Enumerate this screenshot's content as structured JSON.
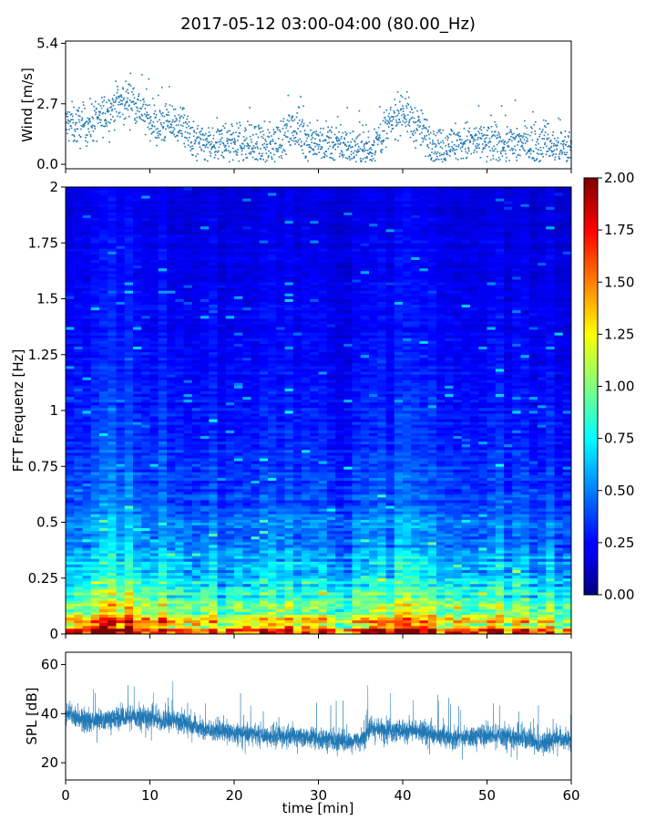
{
  "title": "2017-05-12 03:00-04:00 (80.00_Hz)",
  "chart_data": [
    {
      "type": "scatter",
      "name": "wind",
      "ylabel": "Wind [m/s]",
      "xlim": [
        0,
        60
      ],
      "ylim": [
        -0.2,
        5.5
      ],
      "yticks": [
        0.0,
        2.7,
        5.4
      ],
      "ytick_labels": [
        "0.0",
        "2.7",
        "5.4"
      ],
      "xticks": [
        0,
        10,
        20,
        30,
        40,
        50,
        60
      ],
      "color": "#1f77b4",
      "trend": [
        [
          0,
          1.8
        ],
        [
          2,
          1.7
        ],
        [
          4,
          2.0
        ],
        [
          6,
          2.7
        ],
        [
          8,
          2.9
        ],
        [
          9,
          2.4
        ],
        [
          11,
          1.6
        ],
        [
          12,
          1.9
        ],
        [
          14,
          1.7
        ],
        [
          15,
          1.0
        ],
        [
          17,
          0.8
        ],
        [
          19,
          0.9
        ],
        [
          21,
          1.0
        ],
        [
          23,
          0.7
        ],
        [
          25,
          1.0
        ],
        [
          27,
          1.5
        ],
        [
          28,
          1.3
        ],
        [
          30,
          0.9
        ],
        [
          32,
          1.0
        ],
        [
          34,
          0.8
        ],
        [
          36,
          0.6
        ],
        [
          37,
          1.1
        ],
        [
          39,
          2.0
        ],
        [
          40,
          2.5
        ],
        [
          41,
          1.9
        ],
        [
          42,
          1.6
        ],
        [
          43,
          1.2
        ],
        [
          44,
          0.8
        ],
        [
          46,
          0.9
        ],
        [
          48,
          1.0
        ],
        [
          50,
          0.9
        ],
        [
          52,
          0.9
        ],
        [
          54,
          1.0
        ],
        [
          56,
          0.8
        ],
        [
          57,
          1.2
        ],
        [
          58,
          0.7
        ],
        [
          60,
          0.7
        ]
      ]
    },
    {
      "type": "heatmap",
      "name": "spectrogram",
      "ylabel": "FFT Frequenz [Hz]",
      "xlim": [
        0,
        60
      ],
      "ylim": [
        0,
        2
      ],
      "yticks": [
        0,
        0.25,
        0.5,
        0.75,
        1,
        1.25,
        1.5,
        1.75,
        2
      ],
      "ytick_labels": [
        "0",
        "0.25",
        "0.5",
        "0.75",
        "1",
        "1.25",
        "1.5",
        "1.75",
        "2"
      ],
      "xticks": [
        0,
        10,
        20,
        30,
        40,
        50,
        60
      ],
      "colormap": "jet",
      "colorbar": {
        "range": [
          0.0,
          2.0
        ],
        "ticks": [
          0.0,
          0.25,
          0.5,
          0.75,
          1.0,
          1.25,
          1.5,
          1.75,
          2.0
        ],
        "tick_labels": [
          "0.00",
          "0.25",
          "0.50",
          "0.75",
          "1.00",
          "1.25",
          "1.50",
          "1.75",
          "2.00"
        ]
      },
      "typical_level_by_frequency": [
        [
          0.0,
          2.0
        ],
        [
          0.04,
          1.6
        ],
        [
          0.08,
          1.2
        ],
        [
          0.15,
          1.0
        ],
        [
          0.25,
          0.8
        ],
        [
          0.4,
          0.6
        ],
        [
          0.6,
          0.45
        ],
        [
          0.9,
          0.35
        ],
        [
          1.3,
          0.28
        ],
        [
          2.0,
          0.22
        ]
      ]
    },
    {
      "type": "line",
      "name": "spl",
      "ylabel": "SPL [dB]",
      "xlabel": "time [min]",
      "xlim": [
        0,
        60
      ],
      "ylim": [
        13,
        65
      ],
      "yticks": [
        20,
        40,
        60
      ],
      "ytick_labels": [
        "20",
        "40",
        "60"
      ],
      "xticks": [
        0,
        10,
        20,
        30,
        40,
        50,
        60
      ],
      "xtick_labels": [
        "0",
        "10",
        "20",
        "30",
        "40",
        "50",
        "60"
      ],
      "color": "#1f77b4",
      "trend": [
        [
          0,
          40
        ],
        [
          3,
          37
        ],
        [
          6,
          38
        ],
        [
          9,
          39
        ],
        [
          12,
          37
        ],
        [
          14,
          37
        ],
        [
          16,
          34
        ],
        [
          18,
          33
        ],
        [
          21,
          32
        ],
        [
          24,
          31
        ],
        [
          27,
          31
        ],
        [
          30,
          30
        ],
        [
          33,
          29
        ],
        [
          35,
          29
        ],
        [
          36,
          34
        ],
        [
          38,
          33
        ],
        [
          41,
          33
        ],
        [
          43,
          32
        ],
        [
          46,
          30
        ],
        [
          49,
          31
        ],
        [
          52,
          31
        ],
        [
          55,
          30
        ],
        [
          56,
          27
        ],
        [
          58,
          30
        ],
        [
          60,
          29
        ]
      ]
    }
  ]
}
